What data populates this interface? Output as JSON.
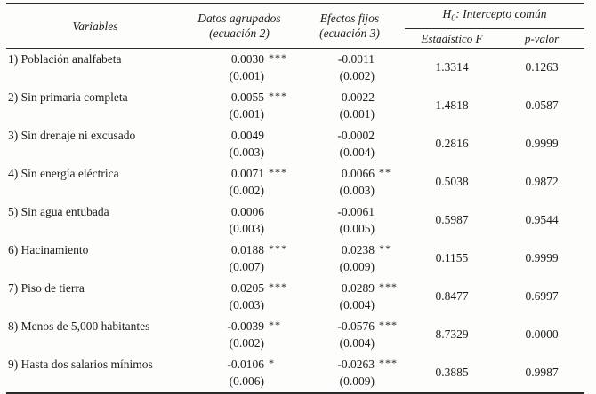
{
  "table": {
    "headers": {
      "variables": "Variables",
      "grouped_line1": "Datos agrupados",
      "grouped_line2": "(ecuación 2)",
      "fixed_line1": "Efectos fijos",
      "fixed_line2": "(ecuación 3)",
      "h0_letter": "H",
      "h0_sub": "0",
      "h0_rest": ": Intercepto común",
      "f_stat": "Estadístico F",
      "p_value": "p-valor"
    },
    "rows": [
      {
        "variable": "1) Población analfabeta",
        "grouped_coef": "0.0030",
        "grouped_stars": "***",
        "grouped_se": "(0.001)",
        "fixed_coef": "-0.0011",
        "fixed_stars": "",
        "fixed_se": "(0.002)",
        "f": "1.3314",
        "p": "0.1263"
      },
      {
        "variable": "2) Sin primaria completa",
        "grouped_coef": "0.0055",
        "grouped_stars": "***",
        "grouped_se": "(0.001)",
        "fixed_coef": "0.0022",
        "fixed_stars": "",
        "fixed_se": "(0.001)",
        "f": "1.4818",
        "p": "0.0587"
      },
      {
        "variable": "3) Sin drenaje ni excusado",
        "grouped_coef": "0.0049",
        "grouped_stars": "",
        "grouped_se": "(0.003)",
        "fixed_coef": "-0.0002",
        "fixed_stars": "",
        "fixed_se": "(0.004)",
        "f": "0.2816",
        "p": "0.9999"
      },
      {
        "variable": "4) Sin energía eléctrica",
        "grouped_coef": "0.0071",
        "grouped_stars": "***",
        "grouped_se": "(0.002)",
        "fixed_coef": "0.0066",
        "fixed_stars": "**",
        "fixed_se": "(0.003)",
        "f": "0.5038",
        "p": "0.9872"
      },
      {
        "variable": "5) Sin agua entubada",
        "grouped_coef": "0.0006",
        "grouped_stars": "",
        "grouped_se": "(0.003)",
        "fixed_coef": "-0.0061",
        "fixed_stars": "",
        "fixed_se": "(0.005)",
        "f": "0.5987",
        "p": "0.9544"
      },
      {
        "variable": "6) Hacinamiento",
        "grouped_coef": "0.0188",
        "grouped_stars": "***",
        "grouped_se": "(0.007)",
        "fixed_coef": "0.0238",
        "fixed_stars": "**",
        "fixed_se": "(0.009)",
        "f": "0.1155",
        "p": "0.9999"
      },
      {
        "variable": "7) Piso de tierra",
        "grouped_coef": "0.0205",
        "grouped_stars": "***",
        "grouped_se": "(0.003)",
        "fixed_coef": "0.0289",
        "fixed_stars": "***",
        "fixed_se": "(0.004)",
        "f": "0.8477",
        "p": "0.6997"
      },
      {
        "variable": "8) Menos de 5,000 habitantes",
        "grouped_coef": "-0.0039",
        "grouped_stars": "**",
        "grouped_se": "(0.002)",
        "fixed_coef": "-0.0576",
        "fixed_stars": "***",
        "fixed_se": "(0.004)",
        "f": "8.7329",
        "p": "0.0000"
      },
      {
        "variable": "9) Hasta dos salarios mínimos",
        "grouped_coef": "-0.0106",
        "grouped_stars": "*",
        "grouped_se": "(0.006)",
        "fixed_coef": "-0.0263",
        "fixed_stars": "***",
        "fixed_se": "(0.009)",
        "f": "0.3885",
        "p": "0.9987"
      }
    ]
  }
}
